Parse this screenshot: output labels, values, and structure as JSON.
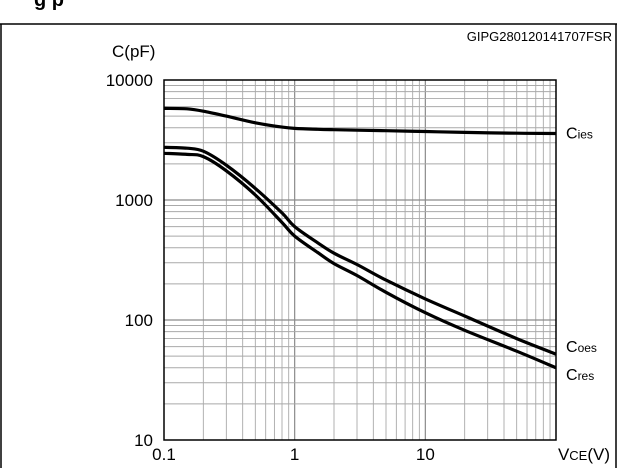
{
  "figure_code": "GIPG280120141707FSR",
  "header_fragment": "g                p",
  "chart_data": {
    "type": "line",
    "ylabel": "C(pF)",
    "xlabel_main": "V",
    "xlabel_sub": "CE",
    "xlabel_unit": "(V)",
    "x_scale": "log",
    "y_scale": "log",
    "xlim": [
      0.1,
      100
    ],
    "ylim": [
      10,
      10000
    ],
    "grid": true,
    "x_tick_labels": [
      "0.1",
      "1",
      "10"
    ],
    "y_tick_labels": [
      "10",
      "100",
      "1000",
      "10000"
    ],
    "x_tick_values": [
      0.1,
      1,
      10
    ],
    "y_tick_values": [
      10,
      100,
      1000,
      10000
    ],
    "series": [
      {
        "name_main": "C",
        "name_sub": "ies",
        "x": [
          0.1,
          0.15,
          0.2,
          0.3,
          0.5,
          0.8,
          1,
          1.5,
          2,
          3,
          5,
          10,
          20,
          50,
          100
        ],
        "values": [
          5800,
          5750,
          5500,
          5000,
          4400,
          4050,
          3950,
          3880,
          3850,
          3820,
          3780,
          3720,
          3660,
          3600,
          3580
        ]
      },
      {
        "name_main": "C",
        "name_sub": "oes",
        "x": [
          0.1,
          0.15,
          0.2,
          0.3,
          0.5,
          0.8,
          1,
          1.5,
          2,
          3,
          5,
          10,
          20,
          50,
          100
        ],
        "values": [
          2750,
          2700,
          2550,
          1950,
          1250,
          780,
          600,
          440,
          360,
          290,
          215,
          150,
          108,
          70,
          52
        ]
      },
      {
        "name_main": "C",
        "name_sub": "res",
        "x": [
          0.1,
          0.15,
          0.2,
          0.3,
          0.5,
          0.8,
          1,
          1.5,
          2,
          3,
          5,
          10,
          20,
          50,
          100
        ],
        "values": [
          2450,
          2400,
          2300,
          1750,
          1100,
          650,
          500,
          365,
          295,
          235,
          170,
          115,
          82,
          55,
          40
        ]
      }
    ]
  }
}
